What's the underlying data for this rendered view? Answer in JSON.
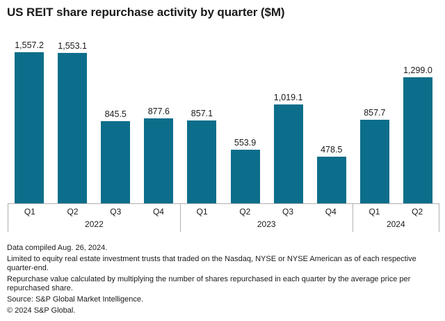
{
  "title": "US REIT share repurchase activity by quarter ($M)",
  "chart_data": {
    "type": "bar",
    "title": "US REIT share repurchase activity by quarter ($M)",
    "unit": "$M",
    "categories": [
      "Q1 2022",
      "Q2 2022",
      "Q3 2022",
      "Q4 2022",
      "Q1 2023",
      "Q2 2023",
      "Q3 2023",
      "Q4 2023",
      "Q1 2024",
      "Q2 2024"
    ],
    "values": [
      1557.2,
      1553.1,
      845.5,
      877.6,
      857.1,
      553.9,
      1019.1,
      478.5,
      857.7,
      1299.0
    ],
    "value_labels": [
      "1,557.2",
      "1,553.1",
      "845.5",
      "877.6",
      "857.1",
      "553.9",
      "1,019.1",
      "478.5",
      "857.7",
      "1,299.0"
    ],
    "groups": [
      {
        "label": "2022",
        "quarters": [
          "Q1",
          "Q2",
          "Q3",
          "Q4"
        ]
      },
      {
        "label": "2023",
        "quarters": [
          "Q1",
          "Q2",
          "Q3",
          "Q4"
        ]
      },
      {
        "label": "2024",
        "quarters": [
          "Q1",
          "Q2"
        ]
      }
    ],
    "bar_color": "#0c6e8a",
    "ylim": [
      0,
      1600
    ],
    "grid": false,
    "legend": false,
    "data_labels": true
  },
  "footnotes": [
    "Data compiled Aug. 26, 2024.",
    "Limited to equity real estate investment trusts that traded on the Nasdaq, NYSE or NYSE American as of each respective quarter-end.",
    "Repurchase value calculated by multiplying the number of shares repurchased in each quarter by the average price per repurchased share.",
    "Source: S&P Global Market Intelligence.",
    "© 2024 S&P Global."
  ]
}
